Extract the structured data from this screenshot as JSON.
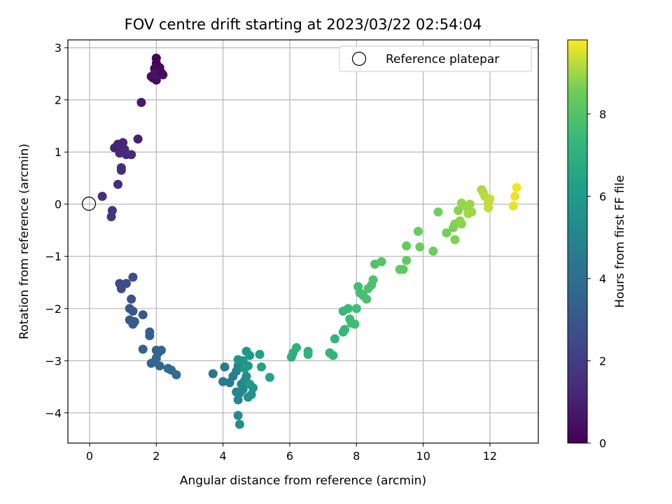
{
  "chart_data": {
    "type": "scatter",
    "title": "FOV centre drift starting at 2023/03/22 02:54:04",
    "xlabel": "Angular distance from reference (arcmin)",
    "ylabel": "Rotation from reference (arcmin)",
    "xlim": [
      -0.65,
      13.45
    ],
    "ylim": [
      -4.58,
      3.15
    ],
    "xticks": [
      0,
      2,
      4,
      6,
      8,
      10,
      12
    ],
    "yticks": [
      -4,
      -3,
      -2,
      -1,
      0,
      1,
      2,
      3
    ],
    "grid": true,
    "legend": {
      "label": "Reference platepar",
      "position": "top-right"
    },
    "reference_point": {
      "x": 0,
      "y": 0
    },
    "colorbar": {
      "label": "Hours from first FF file",
      "range": [
        0,
        9.8
      ],
      "ticks": [
        0,
        2,
        4,
        6,
        8
      ],
      "colormap": "viridis"
    },
    "points": [
      {
        "x": 2.0,
        "y": 2.8,
        "t": 0.1
      },
      {
        "x": 2.0,
        "y": 2.7,
        "t": 0.15
      },
      {
        "x": 2.1,
        "y": 2.62,
        "t": 0.2
      },
      {
        "x": 1.95,
        "y": 2.6,
        "t": 0.25
      },
      {
        "x": 2.05,
        "y": 2.55,
        "t": 0.3
      },
      {
        "x": 1.85,
        "y": 2.45,
        "t": 0.35
      },
      {
        "x": 1.9,
        "y": 2.42,
        "t": 0.4
      },
      {
        "x": 2.0,
        "y": 2.38,
        "t": 0.45
      },
      {
        "x": 2.2,
        "y": 2.48,
        "t": 0.5
      },
      {
        "x": 1.95,
        "y": 2.5,
        "t": 0.55
      },
      {
        "x": 2.15,
        "y": 2.52,
        "t": 0.3
      },
      {
        "x": 1.55,
        "y": 1.95,
        "t": 0.8
      },
      {
        "x": 1.45,
        "y": 1.25,
        "t": 1.0
      },
      {
        "x": 0.85,
        "y": 1.15,
        "t": 1.05
      },
      {
        "x": 1.0,
        "y": 1.18,
        "t": 1.1
      },
      {
        "x": 0.75,
        "y": 1.08,
        "t": 1.1
      },
      {
        "x": 0.95,
        "y": 1.1,
        "t": 1.15
      },
      {
        "x": 1.05,
        "y": 1.05,
        "t": 1.2
      },
      {
        "x": 0.9,
        "y": 0.98,
        "t": 1.25
      },
      {
        "x": 1.1,
        "y": 0.95,
        "t": 1.3
      },
      {
        "x": 1.25,
        "y": 0.95,
        "t": 1.3
      },
      {
        "x": 0.95,
        "y": 0.7,
        "t": 1.4
      },
      {
        "x": 0.95,
        "y": 0.65,
        "t": 1.45
      },
      {
        "x": 0.85,
        "y": 0.38,
        "t": 1.5
      },
      {
        "x": 0.38,
        "y": 0.15,
        "t": 1.6
      },
      {
        "x": 0.68,
        "y": -0.12,
        "t": 1.7
      },
      {
        "x": 0.65,
        "y": -0.24,
        "t": 1.75
      },
      {
        "x": 0.9,
        "y": -1.52,
        "t": 2.5
      },
      {
        "x": 1.1,
        "y": -1.52,
        "t": 2.55
      },
      {
        "x": 0.95,
        "y": -1.62,
        "t": 2.6
      },
      {
        "x": 1.3,
        "y": -1.4,
        "t": 2.7
      },
      {
        "x": 1.25,
        "y": -1.82,
        "t": 2.9
      },
      {
        "x": 1.2,
        "y": -2.0,
        "t": 3.0
      },
      {
        "x": 1.3,
        "y": -2.05,
        "t": 3.05
      },
      {
        "x": 1.6,
        "y": -2.12,
        "t": 3.1
      },
      {
        "x": 1.2,
        "y": -2.22,
        "t": 3.1
      },
      {
        "x": 1.35,
        "y": -2.25,
        "t": 3.15
      },
      {
        "x": 1.3,
        "y": -2.3,
        "t": 3.2
      },
      {
        "x": 1.8,
        "y": -2.45,
        "t": 3.3
      },
      {
        "x": 1.8,
        "y": -2.52,
        "t": 3.35
      },
      {
        "x": 1.6,
        "y": -2.78,
        "t": 3.45
      },
      {
        "x": 2.0,
        "y": -2.8,
        "t": 3.5
      },
      {
        "x": 2.15,
        "y": -2.8,
        "t": 3.55
      },
      {
        "x": 2.05,
        "y": -2.85,
        "t": 3.6
      },
      {
        "x": 2.0,
        "y": -2.95,
        "t": 3.6
      },
      {
        "x": 1.95,
        "y": -3.02,
        "t": 3.65
      },
      {
        "x": 1.85,
        "y": -3.05,
        "t": 3.65
      },
      {
        "x": 2.1,
        "y": -3.1,
        "t": 3.7
      },
      {
        "x": 2.35,
        "y": -3.15,
        "t": 3.75
      },
      {
        "x": 2.45,
        "y": -3.18,
        "t": 3.8
      },
      {
        "x": 2.6,
        "y": -3.27,
        "t": 3.85
      },
      {
        "x": 3.7,
        "y": -3.25,
        "t": 4.4
      },
      {
        "x": 4.05,
        "y": -3.12,
        "t": 4.5
      },
      {
        "x": 4.0,
        "y": -3.4,
        "t": 4.55
      },
      {
        "x": 4.2,
        "y": -3.42,
        "t": 4.6
      },
      {
        "x": 4.3,
        "y": -3.3,
        "t": 4.7
      },
      {
        "x": 4.4,
        "y": -3.2,
        "t": 4.8
      },
      {
        "x": 4.45,
        "y": -3.1,
        "t": 5.0
      },
      {
        "x": 4.4,
        "y": -3.6,
        "t": 5.0
      },
      {
        "x": 4.5,
        "y": -3.62,
        "t": 5.1
      },
      {
        "x": 4.45,
        "y": -3.75,
        "t": 5.1
      },
      {
        "x": 4.6,
        "y": -3.55,
        "t": 5.2
      },
      {
        "x": 4.55,
        "y": -3.45,
        "t": 5.2
      },
      {
        "x": 4.65,
        "y": -3.38,
        "t": 5.3
      },
      {
        "x": 4.7,
        "y": -3.3,
        "t": 5.4
      },
      {
        "x": 4.45,
        "y": -4.05,
        "t": 5.3
      },
      {
        "x": 4.5,
        "y": -4.22,
        "t": 5.35
      },
      {
        "x": 4.45,
        "y": -2.98,
        "t": 5.6
      },
      {
        "x": 4.6,
        "y": -3.0,
        "t": 5.7
      },
      {
        "x": 4.7,
        "y": -2.82,
        "t": 5.8
      },
      {
        "x": 4.8,
        "y": -2.9,
        "t": 5.9
      },
      {
        "x": 4.75,
        "y": -3.1,
        "t": 5.9
      },
      {
        "x": 4.65,
        "y": -3.15,
        "t": 6.0
      },
      {
        "x": 4.8,
        "y": -3.45,
        "t": 5.9
      },
      {
        "x": 4.9,
        "y": -3.52,
        "t": 5.8
      },
      {
        "x": 4.85,
        "y": -3.65,
        "t": 5.7
      },
      {
        "x": 4.75,
        "y": -3.7,
        "t": 5.6
      },
      {
        "x": 5.1,
        "y": -2.88,
        "t": 6.2
      },
      {
        "x": 5.15,
        "y": -3.12,
        "t": 6.3
      },
      {
        "x": 5.4,
        "y": -3.32,
        "t": 6.4
      },
      {
        "x": 6.05,
        "y": -2.93,
        "t": 6.9
      },
      {
        "x": 6.1,
        "y": -2.85,
        "t": 6.95
      },
      {
        "x": 6.2,
        "y": -2.75,
        "t": 7.0
      },
      {
        "x": 6.55,
        "y": -2.82,
        "t": 7.05
      },
      {
        "x": 6.55,
        "y": -2.88,
        "t": 7.1
      },
      {
        "x": 7.2,
        "y": -2.85,
        "t": 7.15
      },
      {
        "x": 7.3,
        "y": -2.9,
        "t": 7.2
      },
      {
        "x": 7.35,
        "y": -2.58,
        "t": 7.25
      },
      {
        "x": 7.6,
        "y": -2.45,
        "t": 7.3
      },
      {
        "x": 7.65,
        "y": -2.4,
        "t": 7.35
      },
      {
        "x": 7.6,
        "y": -2.05,
        "t": 7.4
      },
      {
        "x": 7.75,
        "y": -2.0,
        "t": 7.45
      },
      {
        "x": 7.8,
        "y": -2.2,
        "t": 7.5
      },
      {
        "x": 7.85,
        "y": -2.28,
        "t": 7.55
      },
      {
        "x": 7.95,
        "y": -2.3,
        "t": 7.55
      },
      {
        "x": 8.0,
        "y": -2.0,
        "t": 7.6
      },
      {
        "x": 8.05,
        "y": -1.58,
        "t": 7.65
      },
      {
        "x": 8.1,
        "y": -1.7,
        "t": 7.7
      },
      {
        "x": 8.2,
        "y": -1.75,
        "t": 7.75
      },
      {
        "x": 8.3,
        "y": -1.82,
        "t": 7.8
      },
      {
        "x": 8.45,
        "y": -1.55,
        "t": 7.85
      },
      {
        "x": 8.5,
        "y": -1.45,
        "t": 7.9
      },
      {
        "x": 8.55,
        "y": -1.15,
        "t": 7.95
      },
      {
        "x": 8.75,
        "y": -1.1,
        "t": 8.0
      },
      {
        "x": 8.35,
        "y": -1.62,
        "t": 7.85
      },
      {
        "x": 9.3,
        "y": -1.25,
        "t": 8.2
      },
      {
        "x": 9.4,
        "y": -1.25,
        "t": 8.25
      },
      {
        "x": 9.5,
        "y": -1.08,
        "t": 8.3
      },
      {
        "x": 9.5,
        "y": -0.8,
        "t": 8.35
      },
      {
        "x": 9.85,
        "y": -0.52,
        "t": 8.4
      },
      {
        "x": 9.9,
        "y": -0.82,
        "t": 8.45
      },
      {
        "x": 10.3,
        "y": -0.9,
        "t": 8.5
      },
      {
        "x": 10.45,
        "y": -0.15,
        "t": 8.55
      },
      {
        "x": 10.7,
        "y": -0.55,
        "t": 8.6
      },
      {
        "x": 10.9,
        "y": -0.45,
        "t": 8.65
      },
      {
        "x": 10.95,
        "y": -0.68,
        "t": 8.7
      },
      {
        "x": 10.95,
        "y": -0.38,
        "t": 8.75
      },
      {
        "x": 11.05,
        "y": -0.12,
        "t": 8.8
      },
      {
        "x": 11.1,
        "y": -0.32,
        "t": 8.8
      },
      {
        "x": 11.15,
        "y": -0.38,
        "t": 8.85
      },
      {
        "x": 11.15,
        "y": 0.02,
        "t": 8.9
      },
      {
        "x": 11.3,
        "y": -0.05,
        "t": 8.9
      },
      {
        "x": 11.4,
        "y": 0.0,
        "t": 8.95
      },
      {
        "x": 11.45,
        "y": -0.15,
        "t": 8.95
      },
      {
        "x": 11.35,
        "y": -0.18,
        "t": 9.0
      },
      {
        "x": 11.75,
        "y": 0.28,
        "t": 9.1
      },
      {
        "x": 11.8,
        "y": 0.22,
        "t": 9.15
      },
      {
        "x": 11.85,
        "y": 0.15,
        "t": 9.2
      },
      {
        "x": 11.95,
        "y": 0.02,
        "t": 9.25
      },
      {
        "x": 11.95,
        "y": -0.07,
        "t": 9.3
      },
      {
        "x": 12.0,
        "y": 0.1,
        "t": 9.3
      },
      {
        "x": 12.7,
        "y": -0.03,
        "t": 9.6
      },
      {
        "x": 12.75,
        "y": 0.15,
        "t": 9.65
      },
      {
        "x": 12.8,
        "y": 0.32,
        "t": 9.7
      }
    ]
  }
}
